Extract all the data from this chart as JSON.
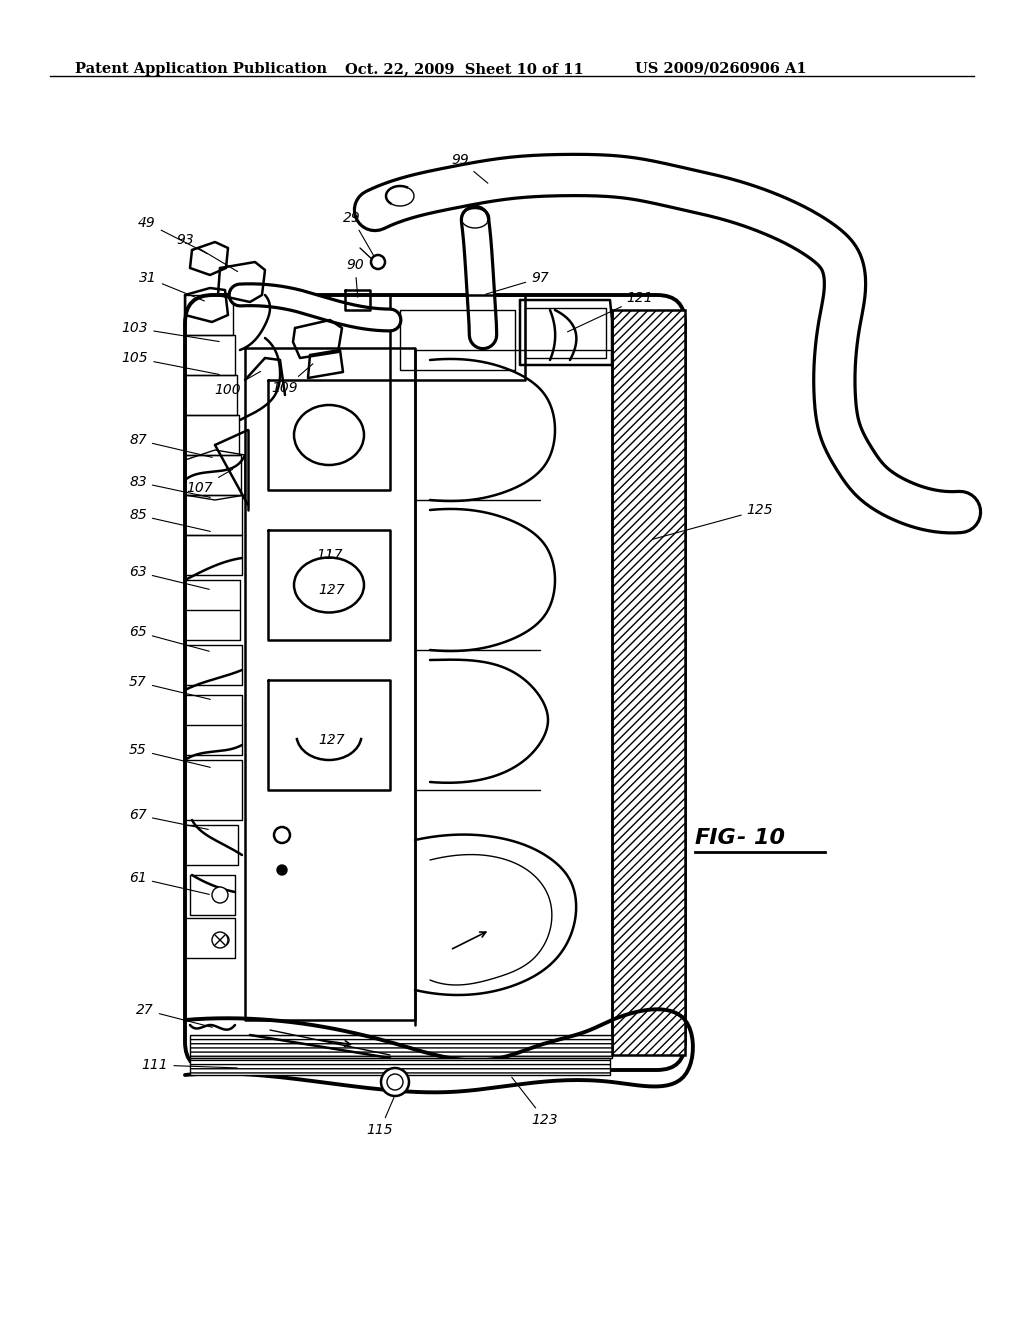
{
  "background_color": "#ffffff",
  "header_left": "Patent Application Publication",
  "header_middle": "Oct. 22, 2009  Sheet 10 of 11",
  "header_right": "US 2009/0260906 A1",
  "figure_label": "FIG- 10",
  "fig_italic": true
}
